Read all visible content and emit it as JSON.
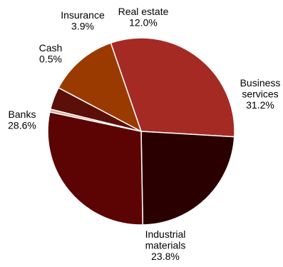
{
  "chart_data": {
    "type": "pie",
    "title": "",
    "series": [
      {
        "label": "Business services",
        "label_lines": [
          "Business",
          "services"
        ],
        "value": 31.2,
        "value_text": "31.2%",
        "color": "#a52a24"
      },
      {
        "label": "Industrial materials",
        "label_lines": [
          "Industrial",
          "materials"
        ],
        "value": 23.8,
        "value_text": "23.8%",
        "color": "#2b0000"
      },
      {
        "label": "Banks",
        "label_lines": [
          "Banks"
        ],
        "value": 28.6,
        "value_text": "28.6%",
        "color": "#5c0404"
      },
      {
        "label": "Cash",
        "label_lines": [
          "Cash"
        ],
        "value": 0.5,
        "value_text": "0.5%",
        "color": "#d9a88c"
      },
      {
        "label": "Insurance",
        "label_lines": [
          "Insurance"
        ],
        "value": 3.9,
        "value_text": "3.9%",
        "color": "#5a1008"
      },
      {
        "label": "Real estate",
        "label_lines": [
          "Real estate"
        ],
        "value": 12.0,
        "value_text": "12.0%",
        "color": "#9a3a00"
      }
    ]
  }
}
